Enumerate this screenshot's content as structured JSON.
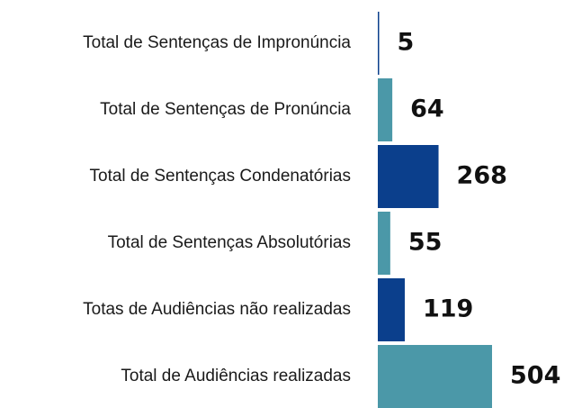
{
  "chart_data": {
    "type": "hbar",
    "categories": [
      "Total de Sentenças de Impronúncia",
      "Total de Sentenças de Pronúncia",
      "Total de Sentenças Condenatórias",
      "Total de Sentenças Absolutórias",
      "Totas de Audiências não realizadas",
      "Total de Audiências realizadas"
    ],
    "values": [
      5,
      64,
      268,
      55,
      119,
      504
    ],
    "colors": [
      "#0b3f8c",
      "#4b98a8",
      "#0b3f8c",
      "#4b98a8",
      "#0b3f8c",
      "#4b98a8"
    ]
  }
}
